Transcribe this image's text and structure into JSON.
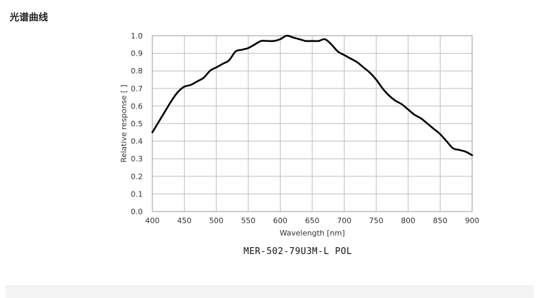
{
  "page": {
    "heading": "光谱曲线",
    "caption": "MER-502-79U3M-L POL"
  },
  "colors": {
    "curve": "#000000",
    "grid": "#bdbdbd",
    "axis_text": "#333333"
  },
  "chart_data": {
    "type": "line",
    "title": "",
    "xlabel": "Wavelength [nm]",
    "ylabel": "Relative response [ ]",
    "xlim": [
      400,
      900
    ],
    "ylim": [
      0.0,
      1.0
    ],
    "xticks": [
      400,
      450,
      500,
      550,
      600,
      650,
      700,
      750,
      800,
      850,
      900
    ],
    "yticks": [
      0.0,
      0.1,
      0.2,
      0.3,
      0.4,
      0.5,
      0.6,
      0.7,
      0.8,
      0.9,
      1.0
    ],
    "xtick_labels": [
      "400",
      "450",
      "500",
      "550",
      "600",
      "650",
      "700",
      "750",
      "800",
      "850",
      "900"
    ],
    "ytick_labels": [
      "0.0",
      "0.1",
      "0.2",
      "0.3",
      "0.4",
      "0.5",
      "0.6",
      "0.7",
      "0.8",
      "0.9",
      "1.0"
    ],
    "grid": true,
    "series": [
      {
        "x": [
          400,
          410,
          420,
          430,
          440,
          450,
          460,
          470,
          480,
          490,
          500,
          510,
          520,
          530,
          540,
          550,
          560,
          570,
          580,
          590,
          600,
          610,
          620,
          630,
          640,
          650,
          660,
          670,
          680,
          690,
          700,
          710,
          720,
          730,
          740,
          750,
          760,
          770,
          780,
          790,
          800,
          810,
          820,
          830,
          840,
          850,
          860,
          870,
          880,
          890,
          900
        ],
        "y": [
          0.45,
          0.51,
          0.57,
          0.63,
          0.68,
          0.71,
          0.72,
          0.74,
          0.76,
          0.8,
          0.82,
          0.84,
          0.86,
          0.91,
          0.92,
          0.93,
          0.95,
          0.97,
          0.97,
          0.97,
          0.98,
          1.0,
          0.99,
          0.98,
          0.97,
          0.97,
          0.97,
          0.98,
          0.95,
          0.91,
          0.89,
          0.87,
          0.85,
          0.82,
          0.79,
          0.75,
          0.7,
          0.66,
          0.63,
          0.61,
          0.58,
          0.55,
          0.53,
          0.5,
          0.47,
          0.44,
          0.4,
          0.36,
          0.35,
          0.34,
          0.32
        ]
      }
    ]
  }
}
